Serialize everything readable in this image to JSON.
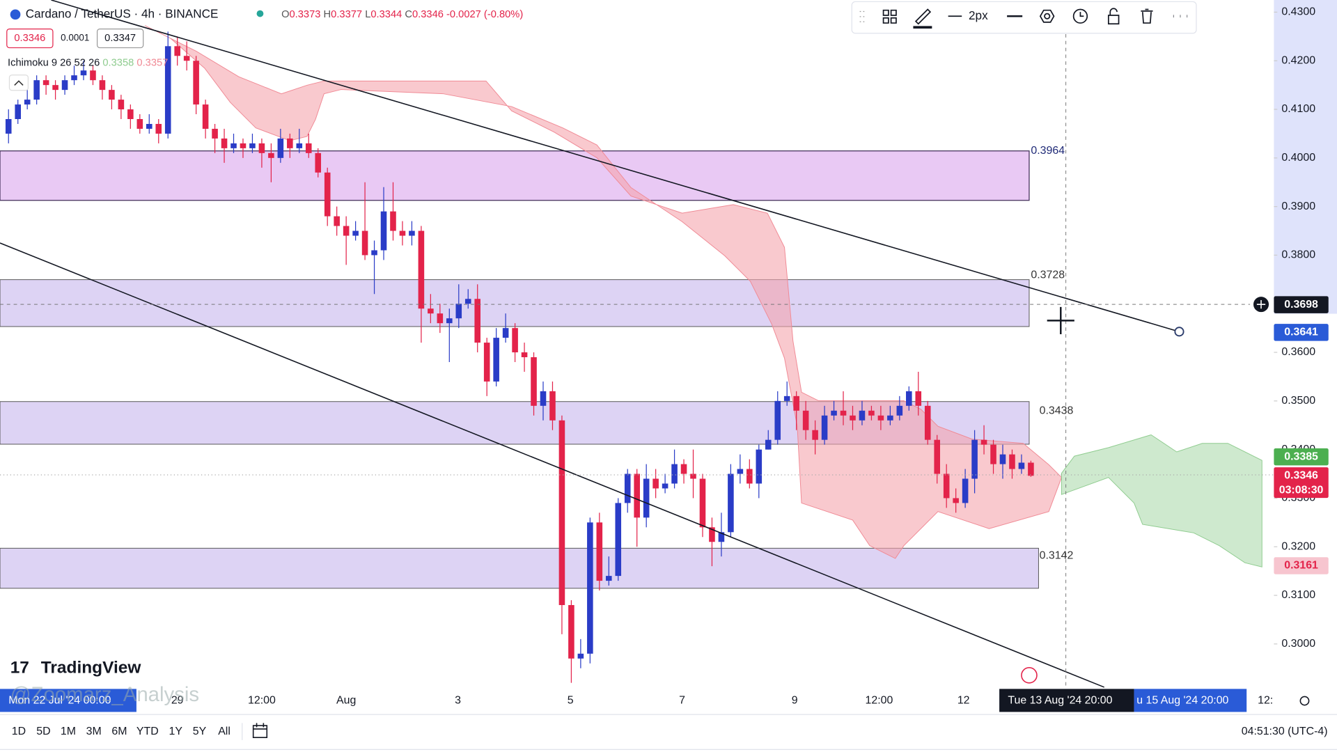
{
  "header": {
    "symbol": "Cardano / TetherUS · 4h · BINANCE",
    "ohlc": [
      {
        "key": "O",
        "value": "0.3373"
      },
      {
        "key": "H",
        "value": "0.3377"
      },
      {
        "key": "L",
        "value": "0.3344"
      },
      {
        "key": "C",
        "value": "0.3346"
      }
    ],
    "change": "-0.0027 (-0.80%)",
    "sell": "0.3346",
    "spread": "0.0001",
    "buy": "0.3347",
    "indicator": "Ichimoku 9 26 52 26",
    "indicator_values": [
      "0.3358",
      "0.3357"
    ]
  },
  "toolbar": {
    "width_label": "2px"
  },
  "zones": [
    {
      "label": "0.3964"
    },
    {
      "label": "0.3728"
    },
    {
      "label": "0.3438"
    },
    {
      "label": "0.3142"
    }
  ],
  "chart": {
    "type": "candlestick",
    "up_color": "#2a3cc7",
    "down_color": "#e3234a",
    "ylim": [
      0.2911,
      0.4325
    ],
    "yticks": [
      {
        "value": 0.43,
        "label": "0.4300"
      },
      {
        "value": 0.42,
        "label": "0.4200"
      },
      {
        "value": 0.41,
        "label": "0.4100"
      },
      {
        "value": 0.4,
        "label": "0.4000"
      },
      {
        "value": 0.39,
        "label": "0.3900"
      },
      {
        "value": 0.38,
        "label": "0.3800"
      },
      {
        "value": 0.37,
        "label": "0.3700"
      },
      {
        "value": 0.36,
        "label": "0.3600"
      },
      {
        "value": 0.35,
        "label": "0.3500"
      },
      {
        "value": 0.34,
        "label": "0.3400"
      },
      {
        "value": 0.33,
        "label": "0.3300"
      },
      {
        "value": 0.32,
        "label": "0.3200"
      },
      {
        "value": 0.31,
        "label": "0.3100"
      },
      {
        "value": 0.3,
        "label": "0.3000"
      }
    ],
    "open": [
      0.405,
      0.408,
      0.411,
      0.412,
      0.416,
      0.415,
      0.414,
      0.416,
      0.417,
      0.418,
      0.416,
      0.414,
      0.412,
      0.41,
      0.408,
      0.406,
      0.407,
      0.405,
      0.423,
      0.421,
      0.42,
      0.411,
      0.406,
      0.404,
      0.402,
      0.403,
      0.402,
      0.403,
      0.401,
      0.4,
      0.404,
      0.402,
      0.403,
      0.401,
      0.397,
      0.388,
      0.386,
      0.384,
      0.385,
      0.38,
      0.381,
      0.389,
      0.385,
      0.384,
      0.385,
      0.369,
      0.368,
      0.366,
      0.367,
      0.37,
      0.371,
      0.362,
      0.354,
      0.363,
      0.365,
      0.36,
      0.359,
      0.349,
      0.352,
      0.346,
      0.308,
      0.297,
      0.298,
      0.325,
      0.313,
      0.314,
      0.329,
      0.335,
      0.326,
      0.334,
      0.332,
      0.333,
      0.337,
      0.335,
      0.334,
      0.324,
      0.321,
      0.323,
      0.335,
      0.336,
      0.333,
      0.34,
      0.342,
      0.35,
      0.351,
      0.348,
      0.344,
      0.342,
      0.347,
      0.348,
      0.347,
      0.346,
      0.348,
      0.347,
      0.346,
      0.347,
      0.349,
      0.352,
      0.349,
      0.342,
      0.335,
      0.33,
      0.329,
      0.334,
      0.342,
      0.341,
      0.337,
      0.339,
      0.336,
      0.3373
    ],
    "high": [
      0.41,
      0.412,
      0.414,
      0.417,
      0.417,
      0.416,
      0.417,
      0.419,
      0.42,
      0.419,
      0.417,
      0.415,
      0.413,
      0.411,
      0.409,
      0.409,
      0.408,
      0.426,
      0.425,
      0.424,
      0.421,
      0.412,
      0.407,
      0.406,
      0.405,
      0.404,
      0.405,
      0.404,
      0.403,
      0.406,
      0.405,
      0.406,
      0.405,
      0.402,
      0.398,
      0.39,
      0.388,
      0.387,
      0.395,
      0.383,
      0.394,
      0.395,
      0.387,
      0.387,
      0.386,
      0.372,
      0.37,
      0.369,
      0.374,
      0.373,
      0.374,
      0.363,
      0.365,
      0.368,
      0.366,
      0.362,
      0.36,
      0.354,
      0.354,
      0.347,
      0.309,
      0.301,
      0.326,
      0.327,
      0.318,
      0.33,
      0.336,
      0.336,
      0.337,
      0.336,
      0.335,
      0.34,
      0.338,
      0.34,
      0.335,
      0.326,
      0.327,
      0.337,
      0.339,
      0.338,
      0.341,
      0.344,
      0.352,
      0.354,
      0.352,
      0.35,
      0.346,
      0.349,
      0.35,
      0.352,
      0.349,
      0.35,
      0.349,
      0.349,
      0.349,
      0.351,
      0.353,
      0.356,
      0.35,
      0.343,
      0.337,
      0.332,
      0.336,
      0.344,
      0.345,
      0.342,
      0.341,
      0.34,
      0.339,
      0.3377
    ],
    "low": [
      0.403,
      0.407,
      0.41,
      0.411,
      0.413,
      0.412,
      0.413,
      0.415,
      0.416,
      0.415,
      0.412,
      0.41,
      0.408,
      0.406,
      0.405,
      0.405,
      0.403,
      0.404,
      0.419,
      0.418,
      0.409,
      0.404,
      0.401,
      0.399,
      0.401,
      0.4,
      0.401,
      0.398,
      0.395,
      0.399,
      0.4,
      0.401,
      0.4,
      0.396,
      0.386,
      0.384,
      0.378,
      0.383,
      0.379,
      0.372,
      0.379,
      0.383,
      0.382,
      0.382,
      0.362,
      0.366,
      0.364,
      0.358,
      0.365,
      0.369,
      0.36,
      0.351,
      0.353,
      0.362,
      0.358,
      0.356,
      0.347,
      0.346,
      0.344,
      0.302,
      0.292,
      0.295,
      0.296,
      0.311,
      0.312,
      0.313,
      0.327,
      0.32,
      0.324,
      0.33,
      0.331,
      0.332,
      0.333,
      0.33,
      0.322,
      0.316,
      0.318,
      0.322,
      0.333,
      0.332,
      0.33,
      0.34,
      0.341,
      0.349,
      0.344,
      0.342,
      0.339,
      0.341,
      0.346,
      0.345,
      0.344,
      0.345,
      0.346,
      0.344,
      0.345,
      0.346,
      0.348,
      0.347,
      0.341,
      0.333,
      0.328,
      0.327,
      0.328,
      0.331,
      0.339,
      0.335,
      0.334,
      0.334,
      0.335,
      0.3344
    ],
    "close": [
      0.408,
      0.411,
      0.412,
      0.416,
      0.415,
      0.414,
      0.416,
      0.417,
      0.418,
      0.416,
      0.414,
      0.412,
      0.41,
      0.408,
      0.406,
      0.407,
      0.405,
      0.423,
      0.421,
      0.42,
      0.411,
      0.406,
      0.404,
      0.402,
      0.403,
      0.402,
      0.403,
      0.401,
      0.4,
      0.404,
      0.402,
      0.403,
      0.401,
      0.397,
      0.388,
      0.386,
      0.384,
      0.385,
      0.38,
      0.381,
      0.389,
      0.385,
      0.384,
      0.385,
      0.369,
      0.368,
      0.366,
      0.367,
      0.37,
      0.371,
      0.362,
      0.354,
      0.363,
      0.365,
      0.36,
      0.359,
      0.349,
      0.352,
      0.346,
      0.308,
      0.297,
      0.298,
      0.325,
      0.313,
      0.314,
      0.329,
      0.335,
      0.326,
      0.334,
      0.332,
      0.333,
      0.337,
      0.335,
      0.334,
      0.324,
      0.321,
      0.323,
      0.335,
      0.336,
      0.333,
      0.34,
      0.342,
      0.35,
      0.351,
      0.348,
      0.344,
      0.342,
      0.347,
      0.348,
      0.347,
      0.346,
      0.348,
      0.347,
      0.346,
      0.347,
      0.349,
      0.352,
      0.349,
      0.342,
      0.335,
      0.33,
      0.329,
      0.334,
      0.342,
      0.341,
      0.337,
      0.339,
      0.336,
      0.3373,
      0.3346
    ],
    "badges": [
      {
        "value": 0.3698,
        "color": "#131722"
      },
      {
        "value": 0.3641,
        "color": "#2a5bd7"
      },
      {
        "value": 0.3385,
        "color": "#4caf50"
      },
      {
        "value": 0.3346,
        "color": "#e3234a",
        "countdown": "03:08:30"
      },
      {
        "value": 0.3161,
        "color": "#f7c5cf",
        "text_color": "#e3234a"
      }
    ]
  },
  "time_axis": {
    "start": "Mon 22 Jul '24  00:00",
    "labels": [
      "29",
      "12:00",
      "Aug",
      "3",
      "5",
      "7",
      "9",
      "12:00",
      "12"
    ],
    "crosshair": "Tue 13 Aug '24   20:00",
    "range_end": "u 15 Aug '24   20:00",
    "tail": "12:"
  },
  "watermark": "@Zoomarz_Analysis",
  "logo": "TradingView",
  "bottom_bar": {
    "ranges": [
      "1D",
      "5D",
      "1M",
      "3M",
      "6M",
      "YTD",
      "1Y",
      "5Y",
      "All"
    ],
    "clock": "04:51:30 (UTC-4)"
  }
}
